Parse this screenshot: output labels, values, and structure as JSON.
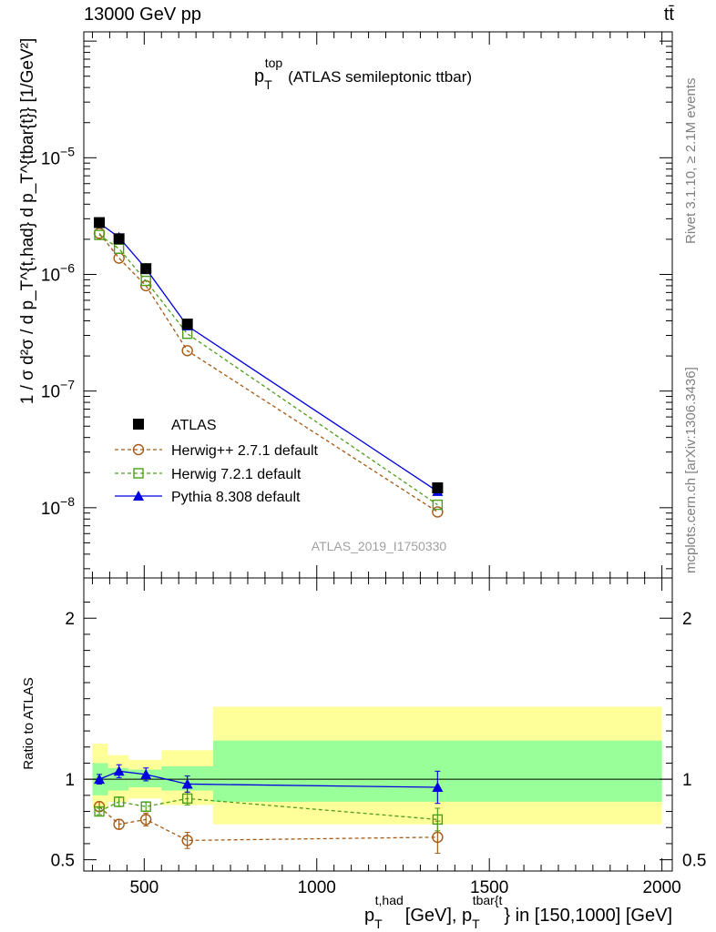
{
  "header": {
    "left": "13000 GeV pp",
    "right": "tt̄"
  },
  "side_labels": {
    "rivet": "Rivet 3.1.10, ≥ 2.1M events",
    "mcplots": "mcplots.cern.ch [arXiv:1306.3436]"
  },
  "watermark": "ATLAS_2019_I1750330",
  "chart_data": [
    {
      "type": "line",
      "panel": "main",
      "title": "p_T^top (ATLAS semileptonic ttbar)",
      "title_parts": {
        "p": "p",
        "sub": "T",
        "sup": "top",
        "rest": "(ATLAS semileptonic ttbar)"
      },
      "ylabel": "1 / σ d²σ / d p_T^{t,had} d p_T^{tbar{t}} [1/GeV²]",
      "yscale": "log",
      "ylim": [
        2.5e-09,
        0.00012
      ],
      "xlim": [
        325,
        2030
      ],
      "y_ticks": [
        {
          "value": 1e-08,
          "label": "10",
          "exp": "−8"
        },
        {
          "value": 1e-07,
          "label": "10",
          "exp": "−7"
        },
        {
          "value": 1e-06,
          "label": "10",
          "exp": "−6"
        },
        {
          "value": 1e-05,
          "label": "10",
          "exp": "−5"
        }
      ],
      "x": [
        370,
        427,
        505,
        625,
        1350
      ],
      "series": [
        {
          "name": "ATLAS",
          "marker": "square",
          "color": "#000000",
          "values": [
            2.78e-06,
            2.02e-06,
            1.12e-06,
            3.75e-07,
            1.48e-08
          ]
        },
        {
          "name": "Herwig++ 2.7.1 default",
          "marker": "circle-open",
          "color": "#a55a14",
          "dashed": true,
          "values": [
            2.25e-06,
            1.38e-06,
            8e-07,
            2.22e-07,
            9.2e-09
          ]
        },
        {
          "name": "Herwig 7.2.1 default",
          "marker": "square-open",
          "color": "#4d9e1a",
          "dashed": true,
          "values": [
            2.18e-06,
            1.66e-06,
            8.8e-07,
            3.1e-07,
            1.06e-08
          ]
        },
        {
          "name": "Pythia 8.308 default",
          "marker": "triangle",
          "color": "#0000e0",
          "dashed": false,
          "values": [
            2.75e-06,
            2.08e-06,
            1.12e-06,
            3.62e-07,
            1.38e-08
          ]
        }
      ]
    },
    {
      "type": "line",
      "panel": "ratio",
      "ylabel": "Ratio to ATLAS",
      "xlabel": "p_T^{t,had} [GeV], p_T^{tbar{t}} in [150,1000] [GeV]",
      "xlabel_parts": {
        "rest": "in [150,1000] [GeV]"
      },
      "xlim": [
        325,
        2030
      ],
      "ylim": [
        0.43,
        2.25
      ],
      "x_ticks": [
        500,
        1000,
        1500,
        2000
      ],
      "y_ticks": [
        0.5,
        1,
        2
      ],
      "x": [
        370,
        427,
        505,
        625,
        1350
      ],
      "bands": [
        {
          "x0": 350,
          "x1": 395,
          "green": [
            0.9,
            1.1
          ],
          "yellow": [
            0.82,
            1.22
          ]
        },
        {
          "x0": 395,
          "x1": 455,
          "green": [
            0.93,
            1.07
          ],
          "yellow": [
            0.86,
            1.15
          ]
        },
        {
          "x0": 455,
          "x1": 550,
          "green": [
            0.95,
            1.06
          ],
          "yellow": [
            0.88,
            1.12
          ]
        },
        {
          "x0": 550,
          "x1": 700,
          "green": [
            0.93,
            1.08
          ],
          "yellow": [
            0.84,
            1.18
          ]
        },
        {
          "x0": 700,
          "x1": 2000,
          "green": [
            0.86,
            1.24
          ],
          "yellow": [
            0.72,
            1.45
          ]
        }
      ],
      "series": [
        {
          "name": "Herwig++ 2.7.1 default",
          "values": [
            0.83,
            0.72,
            0.75,
            0.62,
            0.64
          ],
          "err": [
            0.03,
            0.03,
            0.04,
            0.05,
            0.1
          ]
        },
        {
          "name": "Herwig 7.2.1 default",
          "values": [
            0.8,
            0.86,
            0.83,
            0.88,
            0.75
          ],
          "err": [
            0.02,
            0.03,
            0.03,
            0.04,
            0.07
          ]
        },
        {
          "name": "Pythia 8.308 default",
          "values": [
            1.0,
            1.05,
            1.03,
            0.97,
            0.95
          ],
          "err": [
            0.03,
            0.04,
            0.04,
            0.05,
            0.1
          ]
        }
      ]
    }
  ]
}
